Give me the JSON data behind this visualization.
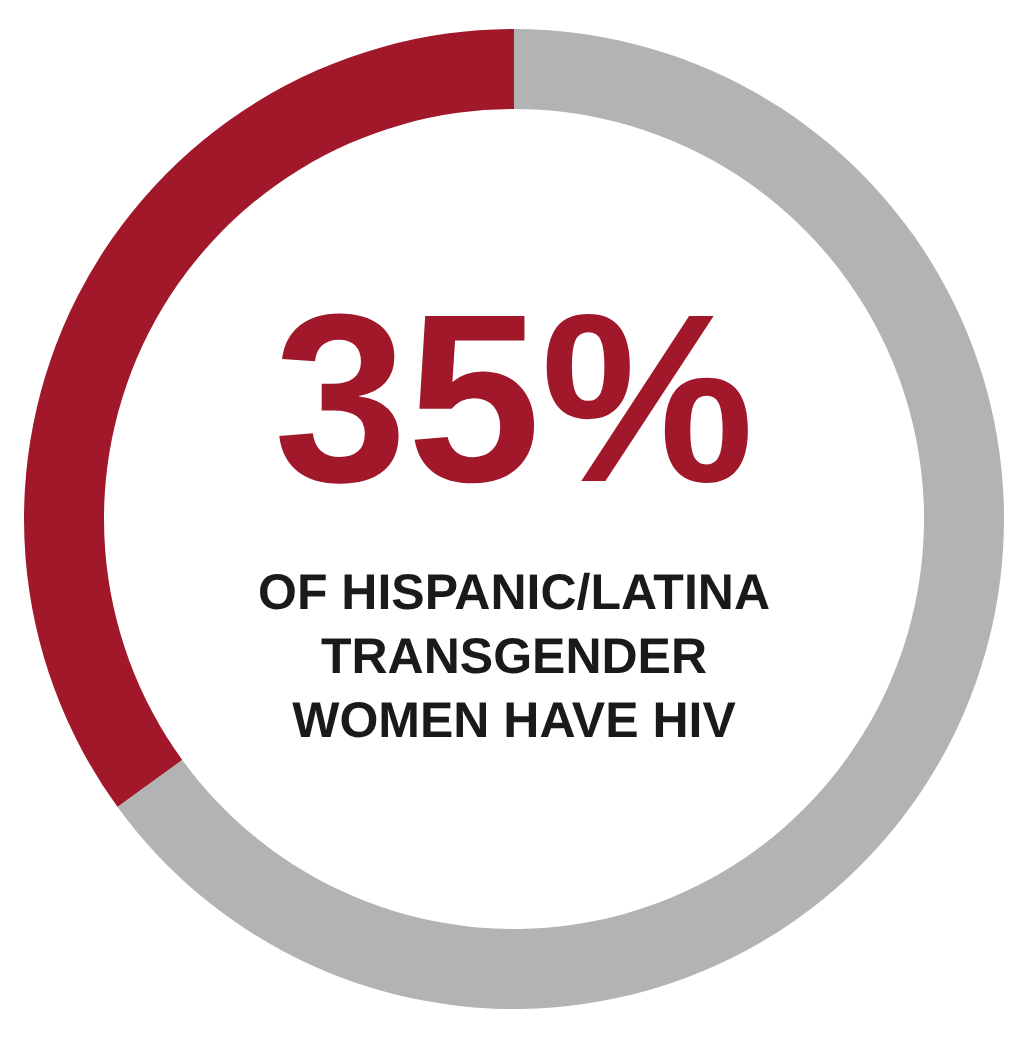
{
  "chart_data": {
    "type": "donut",
    "categories": [
      null,
      null
    ],
    "values": [
      35,
      65
    ],
    "colors": [
      "#a0182a",
      "#b3b3b3"
    ],
    "value_labels": [
      "35%",
      null
    ],
    "annotations": [
      "OF HISPANIC/LATINA\nTRANSGENDER\nWOMEN HAVE HIV"
    ],
    "legend": false
  }
}
